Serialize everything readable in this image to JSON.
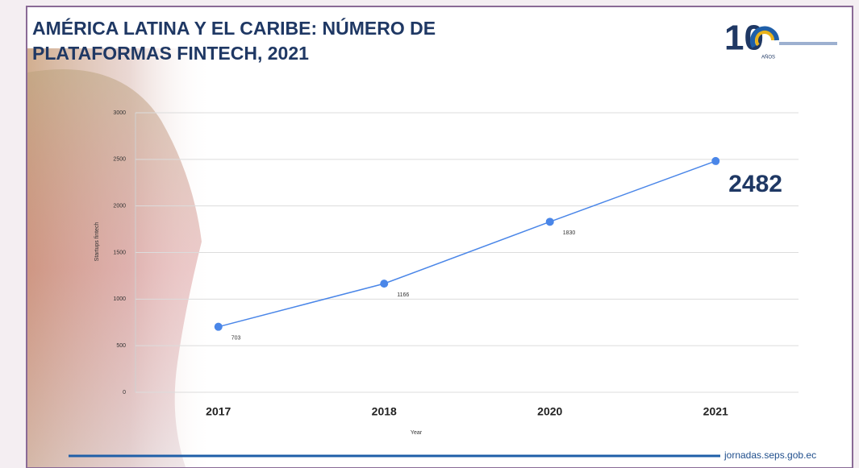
{
  "chart_data": {
    "type": "line",
    "title": "AMÉRICA LATINA Y EL CARIBE: NÚMERO DE PLATAFORMAS FINTECH, 2021",
    "x_label": "Year",
    "y_label": "Startups fintech",
    "categories": [
      "2017",
      "2018",
      "2020",
      "2021"
    ],
    "series": [
      {
        "name": "Startups fintech",
        "color": "#4a86e8",
        "values": [
          703,
          1166,
          1830,
          2482
        ]
      }
    ],
    "ylim": [
      0,
      3000
    ],
    "yticks": [
      0,
      500,
      1000,
      1500,
      2000,
      2500,
      3000
    ],
    "grid": true
  },
  "slide": {
    "logo_number": "10",
    "logo_caption": "AÑOS",
    "footer": "jornadas.seps.gob.ec"
  }
}
